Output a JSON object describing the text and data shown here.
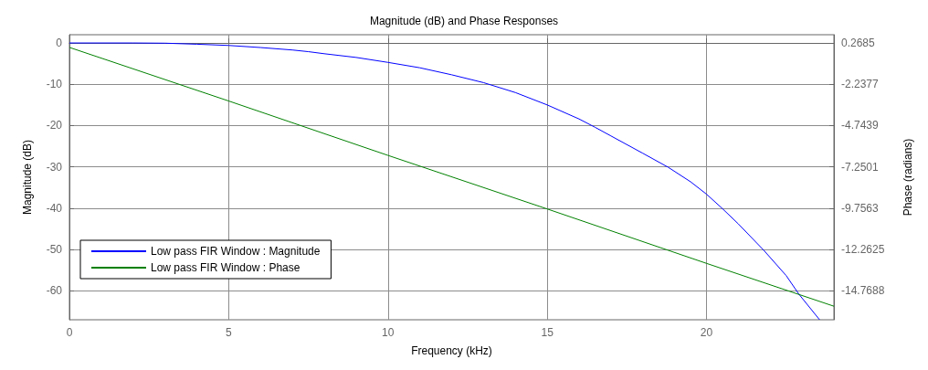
{
  "chart_data": {
    "type": "line",
    "title": "Magnitude (dB) and Phase Responses",
    "xlabel": "Frequency (kHz)",
    "ylabel": "Magnitude (dB)",
    "y2label": "Phase (radians)",
    "xlim": [
      0,
      24
    ],
    "xticks": [
      0,
      5,
      10,
      15,
      20
    ],
    "ylim": [
      -67,
      2
    ],
    "yticks": [
      0,
      -10,
      -20,
      -30,
      -40,
      -50,
      -60
    ],
    "y2lim": [
      -16.52,
      0.77
    ],
    "y2ticks": [
      0.2685,
      -2.2377,
      -4.7439,
      -7.2501,
      -9.7563,
      -12.2625,
      -14.7688
    ],
    "grid": true,
    "legend": "bottom left",
    "marker": "none",
    "line_style": "solid",
    "series": [
      {
        "name": "Low pass FIR Window : Magnitude",
        "color": "#0000ff",
        "x": [
          0,
          2,
          3,
          4,
          5,
          6,
          7,
          7.5,
          8,
          9,
          10,
          11,
          12,
          13,
          14,
          15,
          16,
          16.5,
          17,
          18,
          18.8,
          19.5,
          20,
          20.5,
          21,
          21.8,
          22.5,
          22.9,
          23.55
        ],
        "values": [
          0,
          0,
          -0.05,
          -0.3,
          -0.6,
          -1.1,
          -1.7,
          -2.1,
          -2.6,
          -3.5,
          -4.7,
          -6.0,
          -7.7,
          -9.6,
          -12.0,
          -15.0,
          -18.4,
          -20.4,
          -22.5,
          -26.7,
          -30.1,
          -33.6,
          -36.6,
          -40.1,
          -43.8,
          -50.2,
          -56.3,
          -60.8,
          -67
        ]
      },
      {
        "name": "Low pass FIR Window : Phase",
        "color": "#008000",
        "axis": "y2",
        "x": [
          0,
          5,
          10,
          15,
          20,
          24
        ],
        "values": [
          0,
          -3.25,
          -6.55,
          -9.8,
          -13.1,
          -15.7
        ]
      }
    ]
  }
}
